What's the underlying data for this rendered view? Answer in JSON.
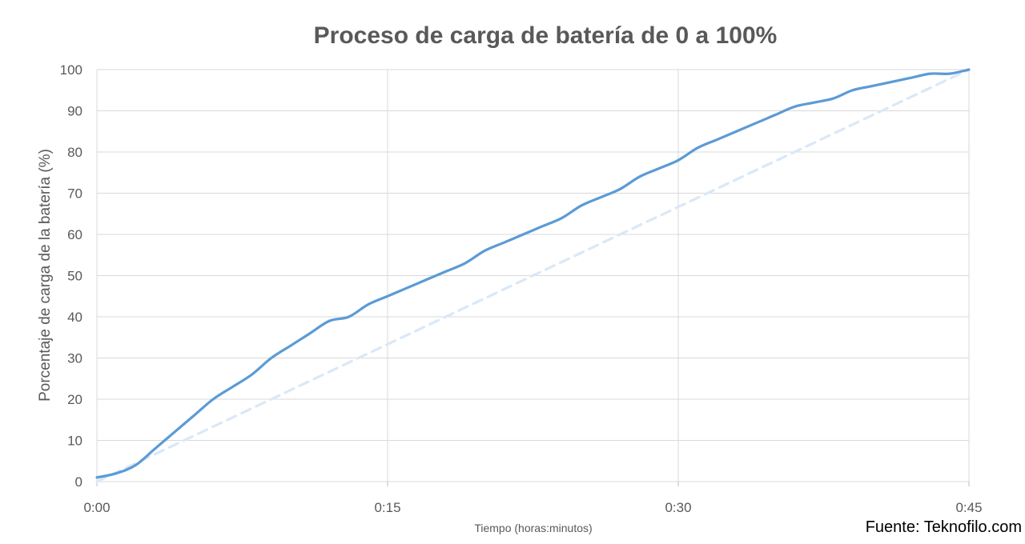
{
  "chart_data": {
    "type": "line",
    "title": "Proceso de carga de batería de 0 a 100%",
    "xlabel": "Tiempo (horas:minutos)",
    "ylabel": "Porcentaje de carga de la batería (%)",
    "x_tick_labels": [
      "0:00",
      "0:15",
      "0:30",
      "0:45"
    ],
    "x_tick_values": [
      0,
      15,
      30,
      45
    ],
    "y_ticks": [
      0,
      10,
      20,
      30,
      40,
      50,
      60,
      70,
      80,
      90,
      100
    ],
    "xlim": [
      0,
      45
    ],
    "ylim": [
      0,
      100
    ],
    "grid": true,
    "series": [
      {
        "color": "#5b9bd5",
        "style": "solid",
        "x": [
          0,
          1,
          2,
          3,
          4,
          5,
          6,
          7,
          8,
          9,
          10,
          11,
          12,
          13,
          14,
          15,
          16,
          17,
          18,
          19,
          20,
          21,
          22,
          23,
          24,
          25,
          26,
          27,
          28,
          29,
          30,
          31,
          32,
          33,
          34,
          35,
          36,
          37,
          38,
          39,
          40,
          41,
          42,
          43,
          44,
          45
        ],
        "y": [
          1,
          2,
          4,
          8,
          12,
          16,
          20,
          23,
          26,
          30,
          33,
          36,
          39,
          40,
          43,
          45,
          47,
          49,
          51,
          53,
          56,
          58,
          60,
          62,
          64,
          67,
          69,
          71,
          74,
          76,
          78,
          81,
          83,
          85,
          87,
          89,
          91,
          92,
          93,
          95,
          96,
          97,
          98,
          99,
          99,
          100
        ]
      },
      {
        "color": "#dae8f7",
        "style": "dashed",
        "x": [
          0,
          45
        ],
        "y": [
          0,
          100
        ]
      }
    ]
  },
  "source_note": "Fuente: Teknofilo.com"
}
